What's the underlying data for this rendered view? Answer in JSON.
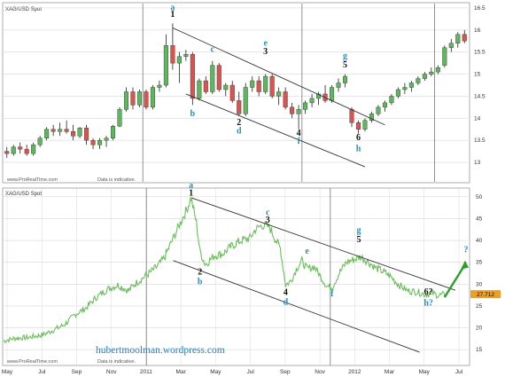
{
  "colors": {
    "up": "#5cb85c",
    "down": "#d9534f",
    "wick": "#222222",
    "line": "#444444",
    "grid": "#d8d8d8",
    "axis": "#888888",
    "label_blue": "#2a8fb8",
    "label_black": "#111111",
    "arrow": "#2aa02a",
    "price_tag": "#f0a020",
    "blog": "#2a7fc0"
  },
  "watermark": "www.ProRealTime.com",
  "disclaimer": "Data is indicative.",
  "blog_url": "hubertmoolman.wordpress.com",
  "chart_data": [
    {
      "type": "candlestick",
      "title": "XAG/USD Spot",
      "y_ticks": [
        13,
        13.5,
        14,
        14.5,
        15,
        15.5,
        16,
        16.5
      ],
      "ylim": [
        12.8,
        16.6
      ],
      "grid": true,
      "candles": [
        [
          13.25,
          13.35,
          13.1,
          13.2
        ],
        [
          13.2,
          13.4,
          13.15,
          13.35
        ],
        [
          13.35,
          13.45,
          13.2,
          13.3
        ],
        [
          13.3,
          13.4,
          13.15,
          13.2
        ],
        [
          13.2,
          13.45,
          13.15,
          13.4
        ],
        [
          13.4,
          13.6,
          13.35,
          13.55
        ],
        [
          13.55,
          13.8,
          13.5,
          13.75
        ],
        [
          13.75,
          13.85,
          13.6,
          13.7
        ],
        [
          13.7,
          13.9,
          13.6,
          13.75
        ],
        [
          13.75,
          13.95,
          13.65,
          13.7
        ],
        [
          13.7,
          13.85,
          13.5,
          13.6
        ],
        [
          13.6,
          13.8,
          13.55,
          13.78
        ],
        [
          13.78,
          13.85,
          13.4,
          13.5
        ],
        [
          13.5,
          13.55,
          13.3,
          13.4
        ],
        [
          13.4,
          13.55,
          13.3,
          13.5
        ],
        [
          13.5,
          13.6,
          13.35,
          13.55
        ],
        [
          13.55,
          13.85,
          13.5,
          13.82
        ],
        [
          13.82,
          14.25,
          13.8,
          14.2
        ],
        [
          14.2,
          14.7,
          14.15,
          14.6
        ],
        [
          14.6,
          14.7,
          14.2,
          14.3
        ],
        [
          14.3,
          14.65,
          14.25,
          14.6
        ],
        [
          14.6,
          14.65,
          14.2,
          14.25
        ],
        [
          14.25,
          14.75,
          14.2,
          14.7
        ],
        [
          14.7,
          14.85,
          14.6,
          14.75
        ],
        [
          14.75,
          15.9,
          14.7,
          15.65
        ],
        [
          15.65,
          16.15,
          15.1,
          15.25
        ],
        [
          15.25,
          15.5,
          14.8,
          15.4
        ],
        [
          15.4,
          15.55,
          15.3,
          15.45
        ],
        [
          15.45,
          15.5,
          14.3,
          14.45
        ],
        [
          14.45,
          14.9,
          14.4,
          14.85
        ],
        [
          14.85,
          14.95,
          14.55,
          14.6
        ],
        [
          14.6,
          15.3,
          14.55,
          15.2
        ],
        [
          15.2,
          15.25,
          14.6,
          14.65
        ],
        [
          14.65,
          14.8,
          14.5,
          14.75
        ],
        [
          14.75,
          14.85,
          14.35,
          14.4
        ],
        [
          14.4,
          14.6,
          14.05,
          14.1
        ],
        [
          14.1,
          14.8,
          14.05,
          14.7
        ],
        [
          14.7,
          14.95,
          14.6,
          14.85
        ],
        [
          14.85,
          14.95,
          14.5,
          14.6
        ],
        [
          14.6,
          15.0,
          14.55,
          14.95
        ],
        [
          14.95,
          15.0,
          14.45,
          14.5
        ],
        [
          14.5,
          14.7,
          14.3,
          14.6
        ],
        [
          14.6,
          14.7,
          14.2,
          14.25
        ],
        [
          14.25,
          14.35,
          14.0,
          14.1
        ],
        [
          14.1,
          14.3,
          13.75,
          14.2
        ],
        [
          14.2,
          14.4,
          14.1,
          14.35
        ],
        [
          14.35,
          14.55,
          14.25,
          14.45
        ],
        [
          14.45,
          14.6,
          14.3,
          14.55
        ],
        [
          14.55,
          14.75,
          14.35,
          14.4
        ],
        [
          14.4,
          14.75,
          14.35,
          14.7
        ],
        [
          14.7,
          14.9,
          14.6,
          14.8
        ],
        [
          14.8,
          15.0,
          14.7,
          14.95
        ],
        [
          14.2,
          14.25,
          13.8,
          13.9
        ],
        [
          13.9,
          13.95,
          13.65,
          13.75
        ],
        [
          13.75,
          14.0,
          13.7,
          13.95
        ],
        [
          13.95,
          14.15,
          13.9,
          14.1
        ],
        [
          14.1,
          14.3,
          14.05,
          14.25
        ],
        [
          14.25,
          14.4,
          14.15,
          14.35
        ],
        [
          14.35,
          14.55,
          14.3,
          14.5
        ],
        [
          14.5,
          14.7,
          14.45,
          14.65
        ],
        [
          14.65,
          14.8,
          14.55,
          14.7
        ],
        [
          14.7,
          14.85,
          14.6,
          14.8
        ],
        [
          14.8,
          14.95,
          14.75,
          14.9
        ],
        [
          14.9,
          15.05,
          14.85,
          15.0
        ],
        [
          15.0,
          15.15,
          14.95,
          15.05
        ],
        [
          15.05,
          15.2,
          15.0,
          15.15
        ],
        [
          15.2,
          15.65,
          15.15,
          15.6
        ],
        [
          15.6,
          15.8,
          15.5,
          15.7
        ],
        [
          15.7,
          15.95,
          15.6,
          15.9
        ],
        [
          15.9,
          16.0,
          15.7,
          15.75
        ]
      ],
      "labels": [
        {
          "text": "a",
          "color": "blue",
          "i": 25,
          "v": 16.45
        },
        {
          "text": "1",
          "color": "black",
          "i": 25,
          "v": 16.3
        },
        {
          "text": "b",
          "color": "blue",
          "i": 28,
          "v": 14.05
        },
        {
          "text": "c",
          "color": "blue",
          "i": 31,
          "v": 15.5
        },
        {
          "text": "2",
          "color": "black",
          "i": 35,
          "v": 13.85
        },
        {
          "text": "d",
          "color": "blue",
          "i": 35,
          "v": 13.65
        },
        {
          "text": "e",
          "color": "blue",
          "i": 39,
          "v": 15.65
        },
        {
          "text": "3",
          "color": "black",
          "i": 39,
          "v": 15.45
        },
        {
          "text": "4",
          "color": "black",
          "i": 44,
          "v": 13.6
        },
        {
          "text": "f",
          "color": "blue",
          "i": 44,
          "v": 13.42
        },
        {
          "text": "g",
          "color": "blue",
          "i": 51,
          "v": 15.35
        },
        {
          "text": "5",
          "color": "black",
          "i": 51,
          "v": 15.15
        },
        {
          "text": "6",
          "color": "black",
          "i": 53,
          "v": 13.5
        },
        {
          "text": "h",
          "color": "blue",
          "i": 53,
          "v": 13.25
        }
      ],
      "channel_upper": [
        [
          25,
          16.05
        ],
        [
          57,
          13.85
        ]
      ],
      "channel_lower": [
        [
          27,
          14.55
        ],
        [
          54,
          12.9
        ]
      ],
      "period_lines": [
        21,
        45,
        65
      ]
    },
    {
      "type": "line",
      "title": "XAG/USD Spot",
      "y_ticks": [
        15,
        20,
        25,
        30,
        35,
        40,
        45,
        50
      ],
      "ylim": [
        13,
        52
      ],
      "x_ticks": [
        "May",
        "Jul",
        "Sep",
        "Nov",
        "2011",
        "Mar",
        "May",
        "Jul",
        "Sep",
        "Nov",
        "2012",
        "Mar",
        "May",
        "Jul"
      ],
      "grid": true,
      "last_value": "27.712",
      "anchors": [
        [
          0,
          17.0
        ],
        [
          6,
          17.6
        ],
        [
          14,
          17.8
        ],
        [
          22,
          18.4
        ],
        [
          28,
          19.5
        ],
        [
          34,
          20.7
        ],
        [
          40,
          23.0
        ],
        [
          46,
          24.5
        ],
        [
          52,
          27.0
        ],
        [
          58,
          28.8
        ],
        [
          64,
          29.8
        ],
        [
          70,
          28.5
        ],
        [
          74,
          30.2
        ],
        [
          80,
          32.0
        ],
        [
          86,
          34.0
        ],
        [
          90,
          36.0
        ],
        [
          95,
          40.5
        ],
        [
          99,
          44.0
        ],
        [
          103,
          47.5
        ],
        [
          105,
          49.8
        ],
        [
          108,
          44.0
        ],
        [
          110,
          37.5
        ],
        [
          113,
          34.5
        ],
        [
          118,
          36.5
        ],
        [
          123,
          37.0
        ],
        [
          128,
          38.8
        ],
        [
          133,
          40.0
        ],
        [
          138,
          40.5
        ],
        [
          141,
          42.5
        ],
        [
          145,
          43.5
        ],
        [
          149,
          43.0
        ],
        [
          152,
          40.5
        ],
        [
          155,
          38.2
        ],
        [
          158,
          29.8
        ],
        [
          161,
          30.8
        ],
        [
          164,
          33.5
        ],
        [
          167,
          35.3
        ],
        [
          170,
          33.5
        ],
        [
          174,
          34.0
        ],
        [
          178,
          31.5
        ],
        [
          181,
          29.5
        ],
        [
          184,
          29.2
        ],
        [
          188,
          32.5
        ],
        [
          192,
          35.0
        ],
        [
          196,
          35.6
        ],
        [
          200,
          36.3
        ],
        [
          204,
          35.2
        ],
        [
          208,
          33.8
        ],
        [
          212,
          33.0
        ],
        [
          216,
          32.0
        ],
        [
          221,
          30.0
        ],
        [
          226,
          28.5
        ],
        [
          231,
          28.3
        ],
        [
          236,
          27.7
        ],
        [
          240,
          27.9
        ],
        [
          244,
          27.4
        ],
        [
          248,
          27.7
        ]
      ],
      "labels": [
        {
          "text": "a",
          "color": "blue",
          "t": 105,
          "v": 52.0
        },
        {
          "text": "1",
          "color": "black",
          "t": 105,
          "v": 50.3
        },
        {
          "text": "2",
          "color": "black",
          "t": 110,
          "v": 32.2
        },
        {
          "text": "b",
          "color": "blue",
          "t": 110,
          "v": 30.0
        },
        {
          "text": "c",
          "color": "blue",
          "t": 148,
          "v": 45.8
        },
        {
          "text": "3",
          "color": "black",
          "t": 148,
          "v": 44.1
        },
        {
          "text": "e",
          "color": "blue",
          "t": 170,
          "v": 37.0
        },
        {
          "text": "4",
          "color": "black",
          "t": 158,
          "v": 27.5
        },
        {
          "text": "d",
          "color": "blue",
          "t": 158,
          "v": 25.3
        },
        {
          "text": "f",
          "color": "blue",
          "t": 184,
          "v": 27.2
        },
        {
          "text": "g",
          "color": "blue",
          "t": 199,
          "v": 41.7
        },
        {
          "text": "5",
          "color": "black",
          "t": 199,
          "v": 39.6
        },
        {
          "text": "6?",
          "color": "black",
          "t": 238,
          "v": 27.6
        },
        {
          "text": "h?",
          "color": "blue",
          "t": 238,
          "v": 25.1
        },
        {
          "text": "?",
          "color": "blue",
          "t": 259,
          "v": 37.3
        }
      ],
      "channel_upper": [
        [
          105,
          49.8
        ],
        [
          253,
          28.6
        ]
      ],
      "channel_lower": [
        [
          95,
          35.4
        ],
        [
          233,
          14.4
        ]
      ],
      "period_lines": [
        80,
        183
      ]
    }
  ]
}
